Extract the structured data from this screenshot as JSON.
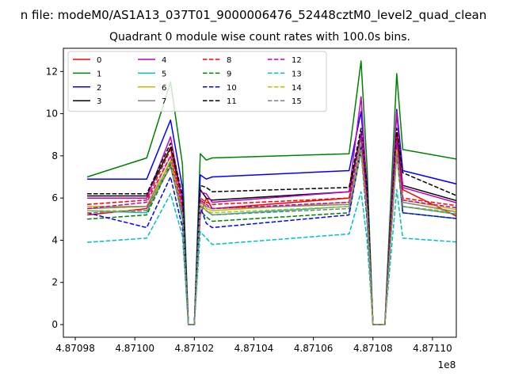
{
  "figure": {
    "suptitle": "n file: modeM0/AS1A13_037T01_9000006476_52448cztM0_level2_quad_clean",
    "title": "Quadrant 0 module wise count rates with 100.0s bins.",
    "x_offset_label": "1e8"
  },
  "chart_data": {
    "type": "line",
    "title": "Quadrant 0 module wise count rates with 100.0s bins.",
    "xlabel": "",
    "ylabel": "",
    "xlim": [
      4.870976,
      4.871108
    ],
    "ylim": [
      -0.6,
      13.1
    ],
    "x_offset": "1e8",
    "x_ticks": [
      4.87098,
      4.871,
      4.87102,
      4.87104,
      4.87106,
      4.87108,
      4.8711
    ],
    "x_tick_labels": [
      "4.87098",
      "4.87100",
      "4.87102",
      "4.87104",
      "4.87106",
      "4.87108",
      "4.87110"
    ],
    "y_ticks": [
      0,
      2,
      4,
      6,
      8,
      10,
      12
    ],
    "y_tick_labels": [
      "0",
      "2",
      "4",
      "6",
      "8",
      "10",
      "12"
    ],
    "grid": false,
    "legend_position": "top-left",
    "legend_columns": 4,
    "x": [
      4.870984,
      4.871004,
      4.871012,
      4.871016,
      4.871018,
      4.87102,
      4.871022,
      4.871024,
      4.871026,
      4.871072,
      4.871076,
      4.871078,
      4.87108,
      4.871084,
      4.871088,
      4.87109,
      4.87111
    ],
    "series": [
      {
        "name": "0",
        "color": "#ff0000",
        "dash": "solid",
        "values": [
          5.2,
          5.5,
          7.5,
          5.2,
          0.0,
          0.0,
          5.2,
          6.0,
          5.5,
          6.0,
          8.4,
          5.6,
          0.0,
          0.0,
          8.6,
          6.4,
          5.0
        ]
      },
      {
        "name": "1",
        "color": "#008000",
        "dash": "solid",
        "values": [
          7.0,
          7.9,
          11.5,
          7.6,
          0.0,
          0.0,
          8.1,
          7.8,
          7.9,
          8.1,
          12.5,
          7.5,
          0.0,
          0.0,
          11.9,
          8.3,
          7.8
        ]
      },
      {
        "name": "2",
        "color": "#0000ff",
        "dash": "solid",
        "values": [
          6.9,
          6.9,
          9.7,
          6.5,
          0.0,
          0.0,
          7.1,
          6.9,
          7.0,
          7.3,
          10.1,
          6.6,
          0.0,
          0.0,
          10.2,
          7.3,
          6.6
        ]
      },
      {
        "name": "3",
        "color": "#000000",
        "dash": "solid",
        "values": [
          6.1,
          6.1,
          8.4,
          5.9,
          0.0,
          0.0,
          6.4,
          6.0,
          5.9,
          6.3,
          9.1,
          6.1,
          0.0,
          0.0,
          9.1,
          6.6,
          5.8
        ]
      },
      {
        "name": "4",
        "color": "#bf00bf",
        "dash": "solid",
        "values": [
          6.0,
          6.0,
          8.9,
          5.8,
          0.0,
          0.0,
          6.3,
          6.2,
          5.8,
          6.3,
          10.8,
          6.3,
          0.0,
          0.0,
          10.1,
          6.5,
          5.7
        ]
      },
      {
        "name": "5",
        "color": "#00bfbf",
        "dash": "solid",
        "values": [
          5.4,
          5.3,
          7.8,
          5.0,
          0.0,
          0.0,
          5.7,
          5.4,
          5.2,
          5.6,
          8.8,
          5.2,
          0.0,
          0.0,
          8.6,
          5.6,
          5.2
        ]
      },
      {
        "name": "6",
        "color": "#bfbf00",
        "dash": "solid",
        "values": [
          5.6,
          5.6,
          8.0,
          5.4,
          0.0,
          0.0,
          5.9,
          5.5,
          5.4,
          5.8,
          8.6,
          5.4,
          0.0,
          0.0,
          8.3,
          5.9,
          5.4
        ]
      },
      {
        "name": "7",
        "color": "#808080",
        "dash": "solid",
        "values": [
          5.5,
          5.6,
          7.7,
          5.3,
          0.0,
          0.0,
          5.8,
          5.6,
          5.5,
          5.7,
          8.5,
          5.5,
          0.0,
          0.0,
          8.4,
          5.8,
          5.3
        ]
      },
      {
        "name": "8",
        "color": "#ff0000",
        "dash": "dashed",
        "values": [
          5.7,
          5.9,
          8.3,
          5.6,
          0.0,
          0.0,
          6.0,
          5.8,
          5.7,
          6.0,
          9.0,
          5.8,
          0.0,
          0.0,
          8.9,
          6.0,
          5.6
        ]
      },
      {
        "name": "9",
        "color": "#008000",
        "dash": "dashed",
        "values": [
          5.0,
          5.2,
          7.6,
          5.1,
          0.0,
          0.0,
          5.4,
          5.1,
          4.9,
          5.3,
          8.2,
          5.0,
          0.0,
          0.0,
          8.1,
          5.3,
          5.0
        ]
      },
      {
        "name": "10",
        "color": "#0000ff",
        "dash": "dashed",
        "values": [
          5.3,
          4.6,
          7.0,
          4.6,
          0.0,
          0.0,
          5.6,
          4.8,
          4.6,
          5.2,
          8.4,
          5.0,
          0.0,
          0.0,
          8.3,
          5.3,
          5.0
        ]
      },
      {
        "name": "11",
        "color": "#000000",
        "dash": "dashed",
        "values": [
          6.2,
          6.2,
          8.6,
          6.1,
          0.0,
          0.0,
          6.6,
          6.5,
          6.3,
          6.5,
          9.3,
          6.5,
          0.0,
          0.0,
          9.3,
          7.2,
          6.0
        ]
      },
      {
        "name": "12",
        "color": "#bf00bf",
        "dash": "dashed",
        "values": [
          5.5,
          5.8,
          8.0,
          5.4,
          0.0,
          0.0,
          5.9,
          5.7,
          5.5,
          5.8,
          9.1,
          5.7,
          0.0,
          0.0,
          8.7,
          5.9,
          5.5
        ]
      },
      {
        "name": "13",
        "color": "#00bfbf",
        "dash": "dashed",
        "values": [
          3.9,
          4.1,
          6.2,
          4.2,
          0.0,
          0.0,
          4.4,
          4.1,
          3.8,
          4.3,
          6.3,
          4.0,
          0.0,
          0.0,
          6.4,
          4.1,
          3.9
        ]
      },
      {
        "name": "14",
        "color": "#bfbf00",
        "dash": "dashed",
        "values": [
          5.4,
          5.4,
          7.8,
          5.2,
          0.0,
          0.0,
          5.7,
          5.4,
          5.3,
          5.6,
          8.3,
          5.4,
          0.0,
          0.0,
          8.3,
          5.6,
          5.3
        ]
      },
      {
        "name": "15",
        "color": "#808080",
        "dash": "dashed",
        "values": [
          5.3,
          5.4,
          7.5,
          5.2,
          0.0,
          0.0,
          5.6,
          5.4,
          5.2,
          5.5,
          8.2,
          5.4,
          0.0,
          0.0,
          8.1,
          5.6,
          5.2
        ]
      }
    ]
  }
}
